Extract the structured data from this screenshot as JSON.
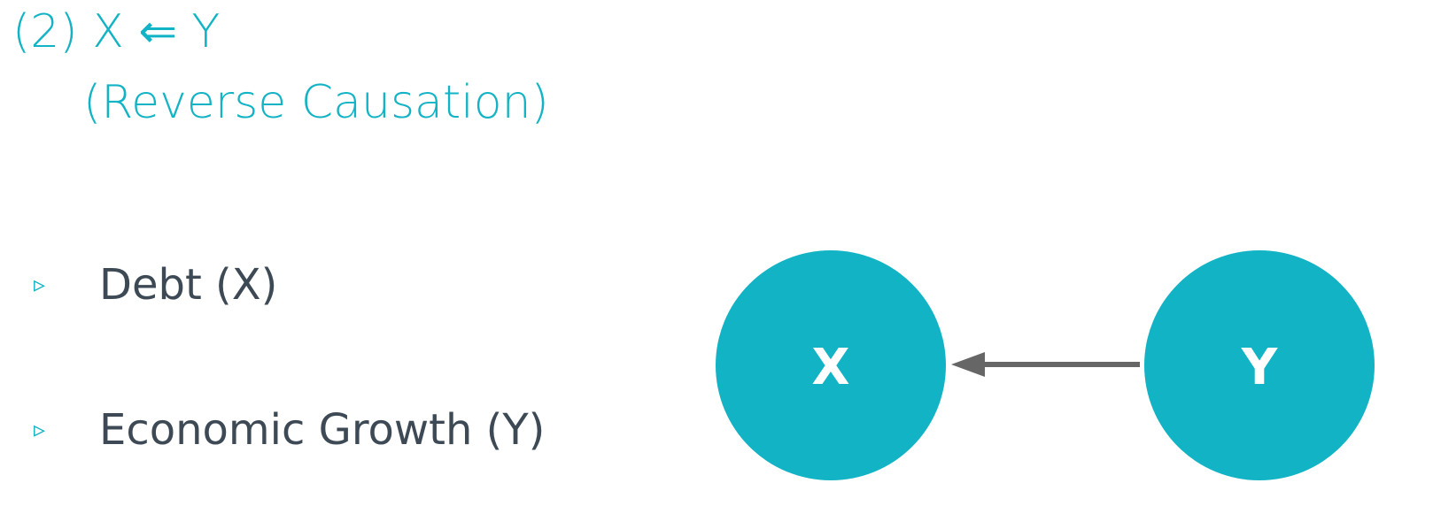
{
  "title": {
    "line1": "(2) X ⇐ Y",
    "line2": "(Reverse Causation)"
  },
  "bullets": [
    {
      "marker": "▹",
      "text": "Debt (X)"
    },
    {
      "marker": "▹",
      "text": "Economic Growth (Y)"
    }
  ],
  "diagram": {
    "nodes": [
      {
        "id": "x",
        "label": "X"
      },
      {
        "id": "y",
        "label": "Y"
      }
    ],
    "edge": {
      "from": "y",
      "to": "x"
    },
    "colors": {
      "node_fill": "#12b3c4",
      "arrow": "#666666",
      "title": "#12b3c4",
      "text": "#3d4a55"
    }
  }
}
